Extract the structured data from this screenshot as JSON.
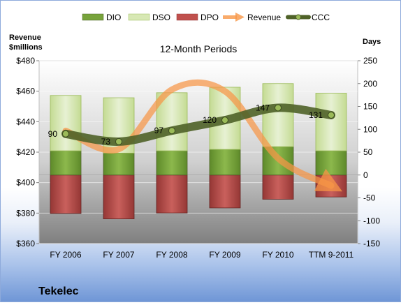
{
  "company": "Tekelec",
  "chart_data": {
    "type": "bar",
    "title": "12-Month Periods",
    "categories": [
      "FY 2006",
      "FY 2007",
      "FY 2008",
      "FY 2009",
      "FY 2010",
      "TTM 9-2011"
    ],
    "left_axis": {
      "label_line1": "Revenue",
      "label_line2": "$millions",
      "min": 360,
      "max": 480,
      "ticks": [
        "$360",
        "$380",
        "$400",
        "$420",
        "$440",
        "$460",
        "$480"
      ]
    },
    "right_axis": {
      "label": "Days",
      "min": -150,
      "max": 250,
      "ticks": [
        "-150",
        "-100",
        "-50",
        "0",
        "50",
        "100",
        "150",
        "200",
        "250"
      ]
    },
    "legend": [
      "DIO",
      "DSO",
      "DPO",
      "Revenue",
      "CCC"
    ],
    "legend_position": "top",
    "series": [
      {
        "name": "DIO",
        "axis": "right",
        "values": [
          53,
          48,
          53,
          56,
          62,
          53
        ]
      },
      {
        "name": "DSO",
        "axis": "right",
        "values": [
          121,
          121,
          127,
          136,
          138,
          126
        ]
      },
      {
        "name": "DPO",
        "axis": "right",
        "values": [
          -84,
          -96,
          -83,
          -72,
          -53,
          -48
        ]
      },
      {
        "name": "Revenue",
        "axis": "left",
        "values": [
          434,
          422,
          461,
          460,
          416,
          398
        ]
      },
      {
        "name": "CCC",
        "axis": "right",
        "values": [
          90,
          73,
          97,
          120,
          147,
          131
        ]
      }
    ],
    "ccc_labels": [
      "90",
      "73",
      "97",
      "120",
      "147",
      "131"
    ],
    "colors": {
      "dio": "#77a33b",
      "dso": "#d7e8b4",
      "dpo": "#c0504d",
      "revenue": "#f79646",
      "ccc": "#4f6228"
    }
  }
}
